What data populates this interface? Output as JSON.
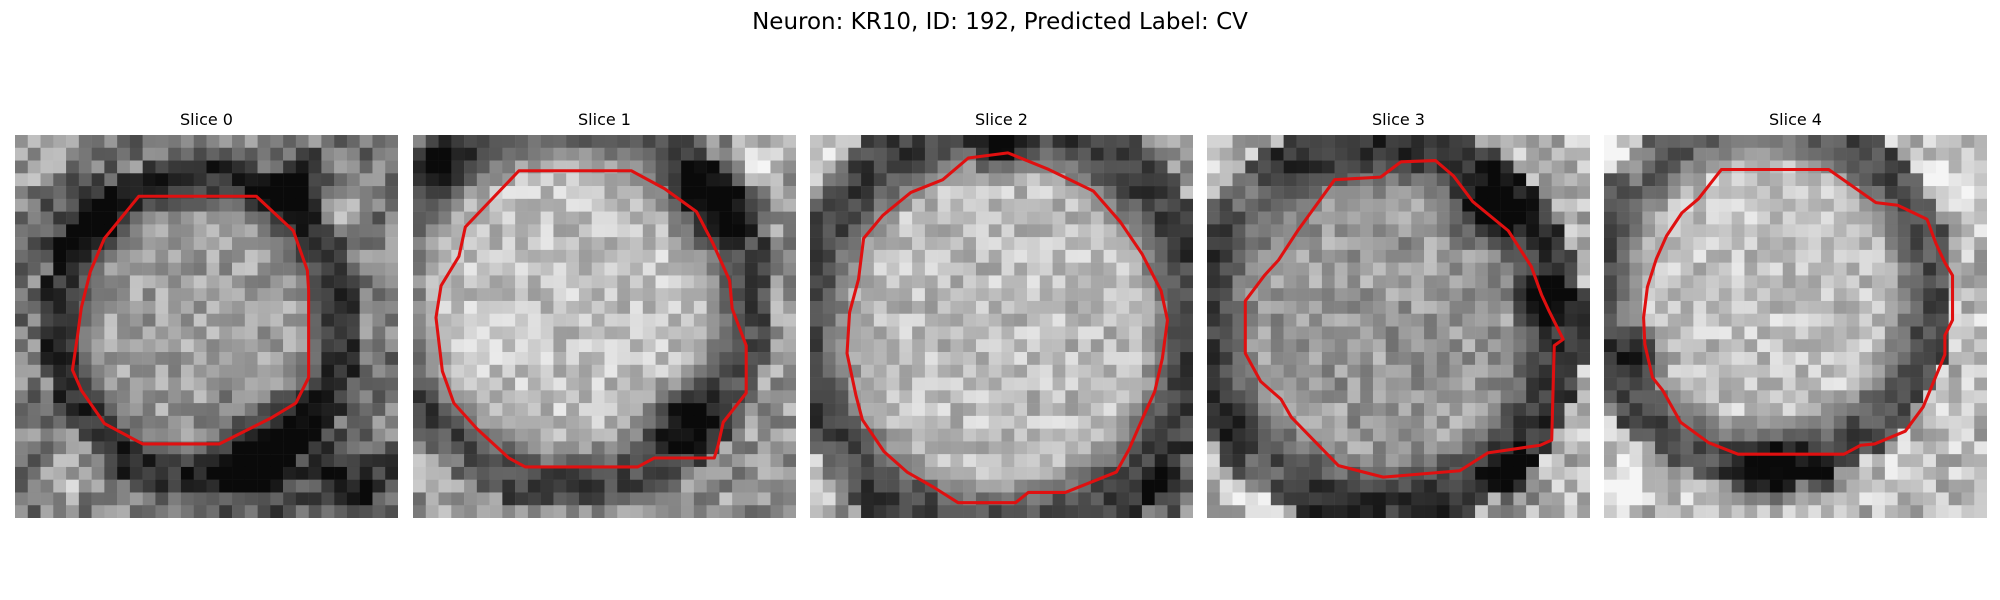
{
  "figure": {
    "title": "Neuron: KR10, ID: 192, Predicted Label: CV"
  },
  "contour_color": "#e01010",
  "panels": [
    {
      "title": "Slice 0"
    },
    {
      "title": "Slice 1"
    },
    {
      "title": "Slice 2"
    },
    {
      "title": "Slice 3"
    },
    {
      "title": "Slice 4"
    }
  ]
}
